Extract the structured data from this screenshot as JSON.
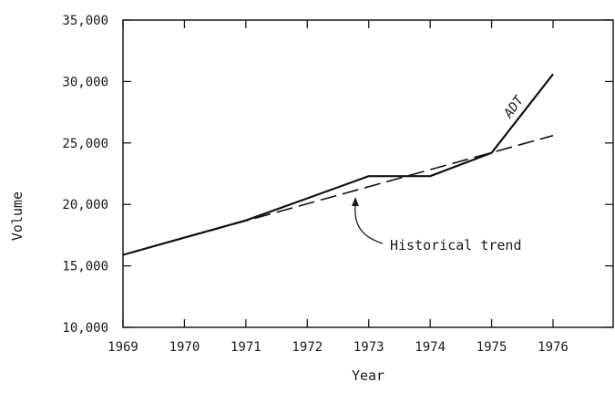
{
  "chart_data": {
    "type": "line",
    "title": "",
    "xlabel": "Year",
    "ylabel": "Volume",
    "xlim": [
      1969,
      1976.3
    ],
    "ylim": [
      10000,
      35000
    ],
    "x_ticks": [
      1969,
      1970,
      1971,
      1972,
      1973,
      1974,
      1975,
      1976
    ],
    "x_tick_labels": [
      "1969",
      "1970",
      "1971",
      "1972",
      "1973",
      "1974",
      "1975",
      "1976"
    ],
    "y_ticks": [
      10000,
      15000,
      20000,
      25000,
      30000,
      35000
    ],
    "y_tick_labels": [
      "10,000",
      "15,000",
      "20,000",
      "25,000",
      "30,000",
      "35,000"
    ],
    "grid": false,
    "series": [
      {
        "name": "ADT",
        "style": "solid",
        "x": [
          1969,
          1970,
          1971,
          1972,
          1973,
          1974,
          1975,
          1976
        ],
        "y": [
          15900,
          17300,
          18700,
          20500,
          22300,
          22300,
          24200,
          30600
        ]
      },
      {
        "name": "Historical trend",
        "style": "dashed",
        "x": [
          1969,
          1976
        ],
        "y": [
          15900,
          25600
        ]
      }
    ],
    "annotations": [
      {
        "text": "ADT",
        "target_series": "ADT"
      },
      {
        "text": "Historical trend",
        "target_series": "Historical trend",
        "arrow": true
      }
    ]
  }
}
